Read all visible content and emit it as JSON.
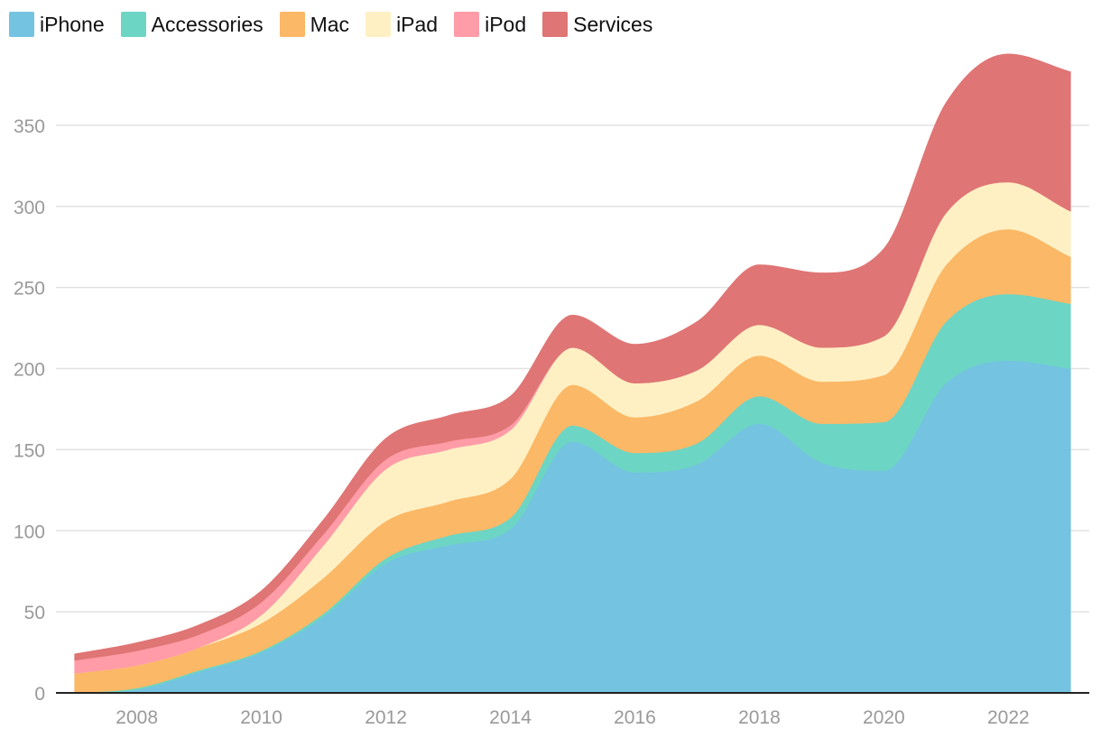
{
  "chart_data": {
    "type": "area",
    "stacked": true,
    "title": "",
    "xlabel": "",
    "ylabel": "",
    "x": [
      2007,
      2008,
      2009,
      2010,
      2011,
      2012,
      2013,
      2014,
      2015,
      2016,
      2017,
      2018,
      2019,
      2020,
      2021,
      2022,
      2023
    ],
    "xticks": [
      "2008",
      "2010",
      "2012",
      "2014",
      "2016",
      "2018",
      "2020",
      "2022"
    ],
    "xtick_values": [
      2008,
      2010,
      2012,
      2014,
      2016,
      2018,
      2020,
      2022
    ],
    "xlim": [
      2006.7,
      2023.3
    ],
    "ylim": [
      0,
      395
    ],
    "yticks": [
      "0",
      "50",
      "100",
      "150",
      "200",
      "250",
      "300",
      "350"
    ],
    "ytick_values": [
      0,
      50,
      100,
      150,
      200,
      250,
      300,
      350
    ],
    "grid": true,
    "legend_position": "top-left",
    "series": [
      {
        "name": "iPhone",
        "color": "#74c3e1",
        "values": [
          0,
          2,
          13,
          25,
          47,
          80,
          91,
          101,
          155,
          136,
          141,
          166,
          142,
          137,
          191,
          205,
          200
        ]
      },
      {
        "name": "Accessories",
        "color": "#6dd5c4",
        "values": [
          0,
          1,
          1,
          1,
          2,
          3,
          6,
          7,
          10,
          12,
          13,
          17,
          24,
          30,
          38,
          41,
          40
        ]
      },
      {
        "name": "Mac",
        "color": "#fbb866",
        "values": [
          12,
          14,
          14,
          17,
          22,
          23,
          21,
          24,
          25,
          22,
          26,
          25,
          26,
          29,
          35,
          40,
          29
        ]
      },
      {
        "name": "iPad",
        "color": "#fff0c4",
        "values": [
          0,
          0,
          0,
          5,
          20,
          32,
          32,
          30,
          23,
          21,
          19,
          19,
          21,
          24,
          32,
          29,
          28
        ]
      },
      {
        "name": "iPod",
        "color": "#ff9ca7",
        "values": [
          8,
          9,
          8,
          8,
          7,
          6,
          5,
          3,
          0,
          0,
          0,
          0,
          0,
          0,
          0,
          0,
          0
        ]
      },
      {
        "name": "Services",
        "color": "#df7574",
        "values": [
          4,
          5,
          6,
          7,
          9,
          13,
          16,
          18,
          20,
          24,
          30,
          37,
          46,
          54,
          68,
          79,
          86
        ]
      }
    ]
  }
}
